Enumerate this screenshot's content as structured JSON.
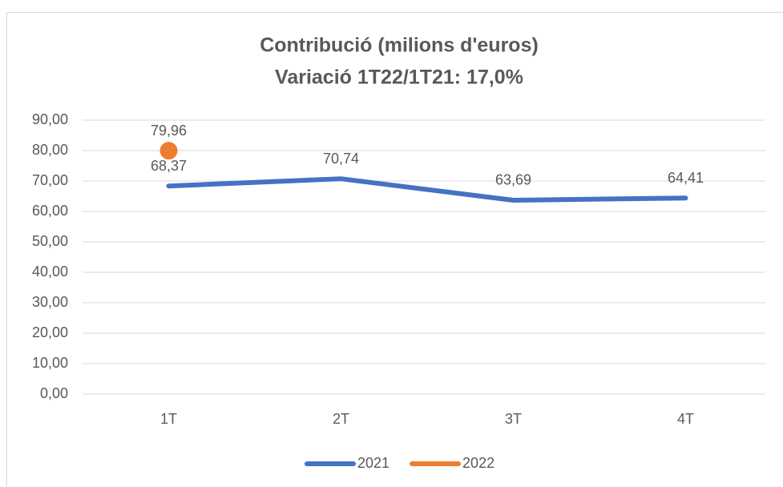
{
  "chart_data": {
    "type": "line",
    "title": "Contribució (milions d'euros)",
    "subtitle": "Variació 1T22/1T21: 17,0%",
    "categories": [
      "1T",
      "2T",
      "3T",
      "4T"
    ],
    "series": [
      {
        "name": "2021",
        "color": "#4472c4",
        "values": [
          68.37,
          70.74,
          63.69,
          64.41
        ],
        "value_labels": [
          "68,37",
          "70,74",
          "63,69",
          "64,41"
        ]
      },
      {
        "name": "2022",
        "color": "#ed7d31",
        "values": [
          79.96,
          null,
          null,
          null
        ],
        "value_labels": [
          "79,96",
          null,
          null,
          null
        ]
      }
    ],
    "ylim": [
      0,
      90
    ],
    "yticks": [
      {
        "value": 0,
        "label": "0,00"
      },
      {
        "value": 10,
        "label": "10,00"
      },
      {
        "value": 20,
        "label": "20,00"
      },
      {
        "value": 30,
        "label": "30,00"
      },
      {
        "value": 40,
        "label": "40,00"
      },
      {
        "value": 50,
        "label": "50,00"
      },
      {
        "value": 60,
        "label": "60,00"
      },
      {
        "value": 70,
        "label": "70,00"
      },
      {
        "value": 80,
        "label": "80,00"
      },
      {
        "value": 90,
        "label": "90,00"
      }
    ],
    "grid": true,
    "legend": "bottom"
  }
}
